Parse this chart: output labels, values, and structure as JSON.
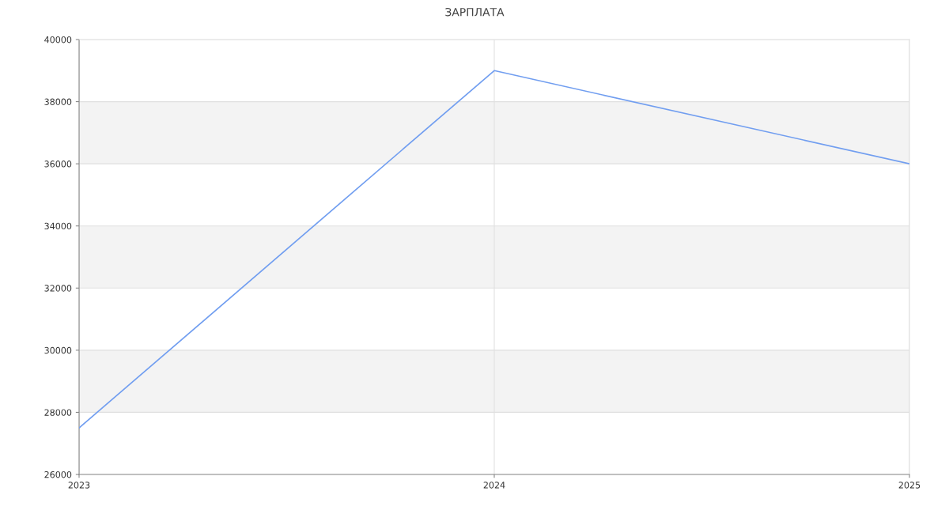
{
  "chart_data": {
    "type": "line",
    "title": "ЗАРПЛАТА",
    "x": [
      2023,
      2024,
      2025
    ],
    "series": [
      {
        "color": "#719ef0",
        "values": [
          27500,
          39000,
          36000
        ]
      }
    ],
    "xlim": [
      2023,
      2025
    ],
    "xticks": [
      2023,
      2024,
      2025
    ],
    "ylim": [
      26000,
      40000
    ],
    "yticks": [
      26000,
      28000,
      30000,
      32000,
      34000,
      36000,
      38000,
      40000
    ],
    "grid": true
  }
}
